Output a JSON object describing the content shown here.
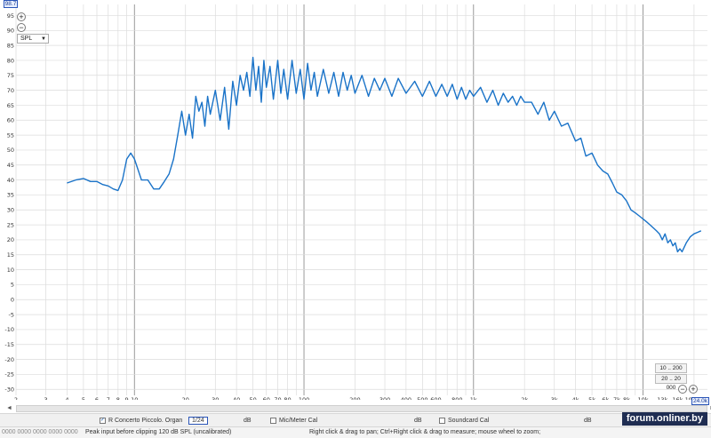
{
  "yaxis": {
    "max_box": "98.7",
    "unit_select": "SPL",
    "ticks": [
      "95",
      "90",
      "85",
      "80",
      "75",
      "70",
      "65",
      "60",
      "55",
      "50",
      "45",
      "40",
      "35",
      "30",
      "25",
      "20",
      "15",
      "10",
      "5",
      "0",
      "-5",
      "-10",
      "-15",
      "-20",
      "-25",
      "-30"
    ]
  },
  "xaxis": {
    "max_box": "24.0k",
    "tick_labels": [
      "2",
      "3",
      "4",
      "5",
      "6",
      "7",
      "8",
      "9",
      "10",
      "20",
      "30",
      "40",
      "50",
      "60",
      "70",
      "80",
      "100",
      "200",
      "300",
      "400",
      "500",
      "600",
      "800",
      "1k",
      "2k",
      "3k",
      "4k",
      "5k",
      "6k",
      "7k",
      "8k",
      "10k",
      "13k",
      "16k",
      "19k",
      "22k"
    ]
  },
  "range_buttons": [
    "10 .. 200",
    "20 .. 20 000"
  ],
  "zoom": {
    "in": "+",
    "out": "−"
  },
  "legend": {
    "trace_name": "R Concerto Piccolo. Organ",
    "trace_style": "1/24",
    "unit1": "dB",
    "mic_cal": "Mic/Meter Cal",
    "unit2": "dB",
    "soundcard_cal": "Soundcard Cal",
    "unit3": "dB"
  },
  "status": {
    "left": "0000  0000 0000  0000 0000",
    "peak": "Peak input before clipping 120 dB SPL (uncalibrated)",
    "hint": "Right click & drag to pan; Ctrl+Right click & drag to measure; mouse wheel to zoom;"
  },
  "watermark": "forum.onliner.by",
  "colors": {
    "trace": "#1a73c8",
    "grid": "#d8d8d8",
    "accent": "#2a55b8"
  },
  "chart_data": {
    "type": "line",
    "x_scale": "log",
    "xlim": [
      2,
      24000
    ],
    "ylim": [
      -32,
      98.7
    ],
    "grid": true,
    "series": [
      {
        "name": "R Concerto Piccolo. Organ",
        "x": [
          4,
          4.5,
          5,
          5.5,
          6,
          6.5,
          7,
          7.5,
          8,
          8.5,
          9,
          9.5,
          10,
          11,
          12,
          13,
          14,
          15,
          16,
          17,
          18,
          19,
          20,
          21,
          22,
          23,
          24,
          25,
          26,
          27,
          28,
          30,
          32,
          34,
          36,
          38,
          40,
          42,
          44,
          46,
          48,
          50,
          52,
          54,
          56,
          58,
          60,
          63,
          66,
          70,
          73,
          76,
          80,
          85,
          90,
          95,
          100,
          105,
          110,
          115,
          120,
          130,
          140,
          150,
          160,
          170,
          180,
          190,
          200,
          220,
          240,
          260,
          280,
          300,
          330,
          360,
          400,
          450,
          500,
          550,
          600,
          650,
          700,
          750,
          800,
          850,
          900,
          950,
          1000,
          1100,
          1200,
          1300,
          1400,
          1500,
          1600,
          1700,
          1800,
          1900,
          2000,
          2200,
          2400,
          2600,
          2800,
          3000,
          3300,
          3600,
          4000,
          4300,
          4600,
          5000,
          5400,
          5800,
          6200,
          6600,
          7000,
          7500,
          8000,
          8500,
          9000,
          9500,
          10000,
          10500,
          11000,
          11500,
          12000,
          12500,
          13000,
          13500,
          14000,
          14500,
          15000,
          15500,
          16000,
          16500,
          17000,
          18000,
          19000,
          20000,
          21000,
          22000
        ],
        "y": [
          39,
          40,
          40.5,
          39.5,
          39.5,
          38.5,
          38,
          37,
          36.5,
          40,
          47,
          49,
          47,
          40,
          40,
          37,
          37,
          39.5,
          42,
          47,
          55,
          63,
          55,
          62,
          54,
          68,
          63,
          66,
          58,
          68,
          62,
          70,
          60,
          71,
          57,
          73,
          65,
          75,
          70,
          76,
          68,
          81,
          70,
          78,
          66,
          80,
          71,
          78,
          67,
          80,
          69,
          77,
          67,
          80,
          69,
          77,
          67,
          79,
          70,
          76,
          68,
          77,
          69,
          76,
          68,
          76,
          70,
          75,
          69,
          75,
          68,
          74,
          70,
          74,
          68,
          74,
          69,
          73,
          68,
          73,
          68,
          72,
          68,
          72,
          67,
          71,
          67,
          70,
          68,
          71,
          66,
          70,
          65,
          69,
          66,
          68,
          65,
          68,
          66,
          66,
          62,
          66,
          60,
          63,
          58,
          59,
          53,
          54,
          48,
          49,
          45,
          43,
          42,
          39,
          36,
          35,
          33,
          30,
          29,
          28,
          27,
          26,
          25,
          24,
          23,
          22,
          20,
          22,
          19,
          20,
          18,
          19,
          16,
          17,
          16,
          19,
          21,
          22,
          22.5,
          23
        ]
      }
    ]
  }
}
